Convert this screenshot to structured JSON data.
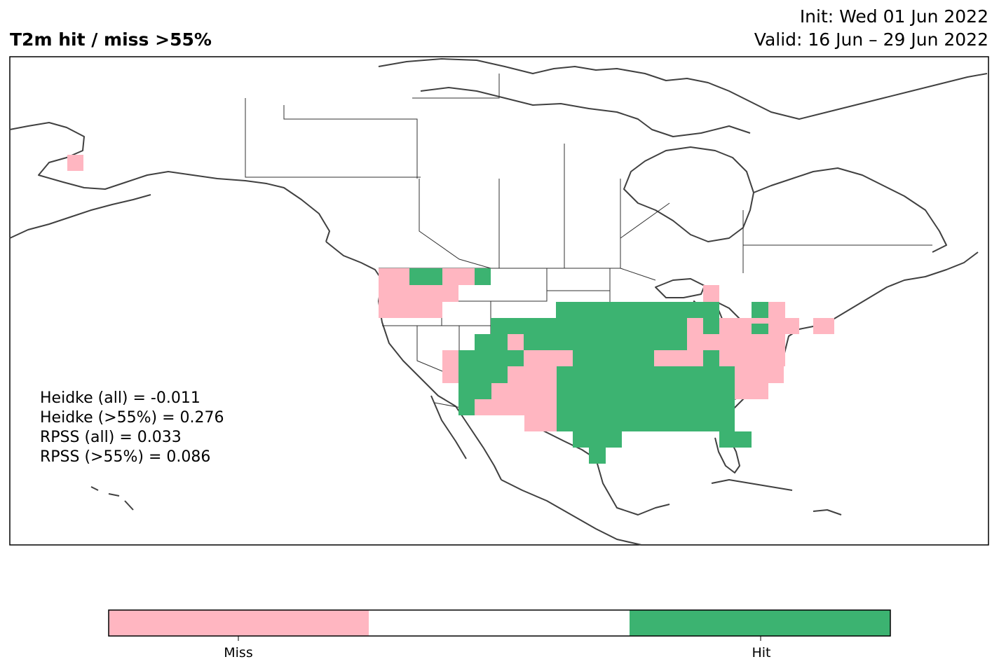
{
  "header": {
    "title": "T2m hit / miss  >55%",
    "init": "Init: Wed 01 Jun 2022",
    "valid": "Valid: 16 Jun – 29 Jun 2022"
  },
  "stats": [
    "Heidke (all) = -0.011",
    "Heidke (>55%) = 0.276",
    "RPSS (all) = 0.033",
    "RPSS (>55%) = 0.086"
  ],
  "colorbar": {
    "labels": [
      "Miss",
      "Hit"
    ],
    "colors": {
      "miss": "#ffb6c1",
      "neutral": "#ffffff",
      "hit": "#3cb371"
    }
  },
  "legend": {
    "miss_color": "#ffb6c1",
    "hit_color": "#3cb371"
  }
}
